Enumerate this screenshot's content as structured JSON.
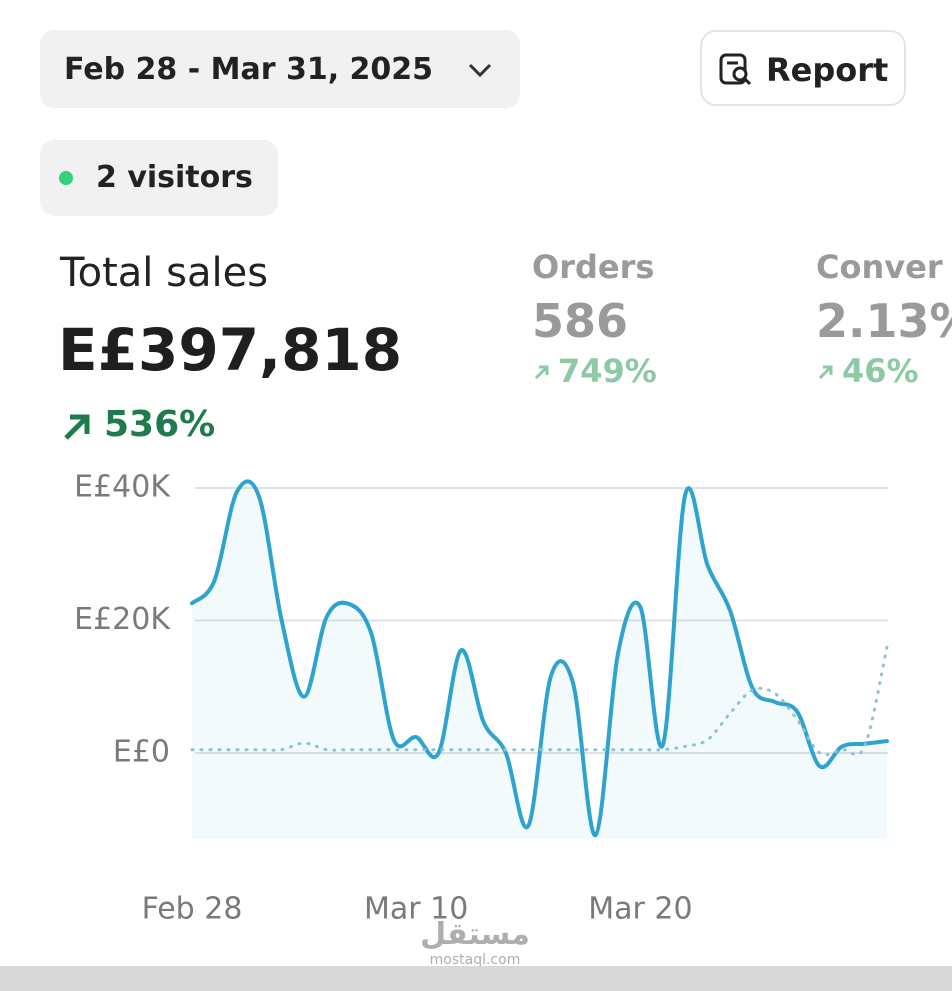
{
  "header": {
    "date_range": "Feb 28 - Mar 31, 2025",
    "report_button": "Report",
    "visitors": "2 visitors"
  },
  "stats": [
    {
      "label": "Total sales",
      "value": "E£397,818",
      "change": "536%"
    },
    {
      "label": "Orders",
      "value": "586",
      "change": "749%"
    },
    {
      "label": "Conver",
      "value": "2.13%",
      "change": "46%"
    }
  ],
  "chart_data": {
    "type": "line",
    "categories": [
      "Feb 28",
      null,
      null,
      null,
      null,
      null,
      null,
      null,
      null,
      null,
      "Mar 10",
      null,
      null,
      null,
      null,
      null,
      null,
      null,
      null,
      null,
      "Mar 20",
      null,
      null,
      null,
      null,
      null,
      null,
      null,
      null,
      null,
      null,
      null
    ],
    "series": [
      {
        "color": "#2ea3cf",
        "style": "solid",
        "values": [
          22600,
          26000,
          39400,
          38600,
          20000,
          8500,
          20500,
          22500,
          18000,
          2000,
          2400,
          0,
          15500,
          4700,
          0,
          -11000,
          11500,
          10500,
          -12400,
          15000,
          22000,
          1200,
          39000,
          28300,
          21500,
          9800,
          7700,
          6200,
          -2000,
          1000,
          1400,
          1800
        ]
      },
      {
        "color": "#8cc3d2",
        "style": "dotted",
        "values": [
          500,
          500,
          500,
          500,
          500,
          1500,
          500,
          500,
          500,
          500,
          500,
          500,
          500,
          500,
          500,
          500,
          500,
          500,
          500,
          500,
          500,
          500,
          1000,
          2000,
          6000,
          9500,
          9000,
          5000,
          0,
          500,
          1000,
          16000
        ]
      }
    ],
    "ylim": [
      -13000,
      40000
    ],
    "yticks": [
      {
        "value": 0,
        "label": "E£0"
      },
      {
        "value": 20000,
        "label": "E£20K"
      },
      {
        "value": 40000,
        "label": "E£40K"
      }
    ],
    "grid": true,
    "area_fill": true
  },
  "watermark": {
    "arabic": "مستقل",
    "site": "mostaql.com"
  }
}
